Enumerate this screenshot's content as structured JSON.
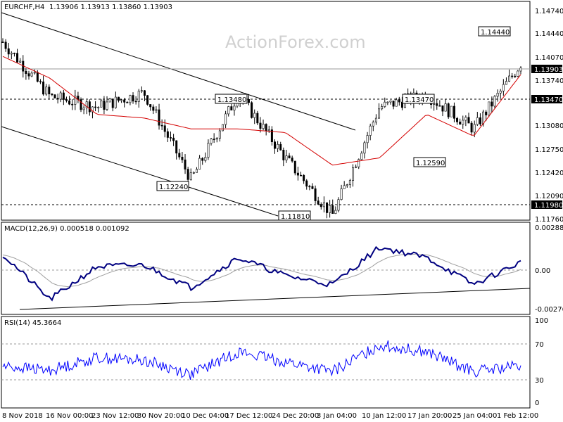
{
  "header": {
    "symbol": "EURCHF,H4",
    "ohlc": "1.13906 1.13913 1.13860 1.13903"
  },
  "watermark": "ActionForex.com",
  "colors": {
    "candle": "#000000",
    "ma": "#d40000",
    "macd": "#000080",
    "signal": "#a0a0a0",
    "rsi": "#0000ff",
    "trend": "#000000"
  },
  "price_axis": {
    "ticks": [
      "1.14740",
      "1.14440",
      "1.14070",
      "1.13740",
      "1.13470",
      "1.13080",
      "1.12750",
      "1.12420",
      "1.12090",
      "1.11980",
      "1.11760"
    ],
    "current": "1.13903",
    "level_label": "1.13470",
    "level_label2": "1.11980"
  },
  "macd_panel": {
    "label": "MACD(12,26,9) 0.000518 0.001092",
    "ticks": [
      "0.002887",
      "0.00",
      "-0.002764"
    ],
    "current": "0.00"
  },
  "rsi_panel": {
    "label": "RSI(14) 45.3664",
    "ticks": [
      "100",
      "70",
      "30",
      "0"
    ]
  },
  "annotations": [
    "1.13480",
    "1.12240",
    "1.11810",
    "1.13470",
    "1.12590",
    "1.14440"
  ],
  "x_axis": [
    "8 Nov 2018",
    "16 Nov 00:00",
    "23 Nov 12:00",
    "30 Nov 20:00",
    "10 Dec 04:00",
    "17 Dec 12:00",
    "24 Dec 20:00",
    "3 Jan 04:00",
    "10 Jan 12:00",
    "17 Jan 20:00",
    "25 Jan 04:00",
    "1 Feb 12:00"
  ],
  "chart_data": {
    "type": "candlestick",
    "title": "EURCHF,H4",
    "categories": [
      "8 Nov 2018",
      "16 Nov 00:00",
      "23 Nov 12:00",
      "30 Nov 20:00",
      "10 Dec 04:00",
      "17 Dec 12:00",
      "24 Dec 20:00",
      "3 Jan 04:00",
      "10 Jan 12:00",
      "17 Jan 20:00",
      "25 Jan 04:00",
      "1 Feb 12:00"
    ],
    "price_close": [
      1.142,
      1.1345,
      1.133,
      1.135,
      1.123,
      1.1348,
      1.126,
      1.1181,
      1.133,
      1.1347,
      1.13,
      1.139
    ],
    "moving_average": [
      1.14,
      1.137,
      1.132,
      1.1315,
      1.13,
      1.13,
      1.1295,
      1.125,
      1.126,
      1.132,
      1.129,
      1.1375
    ],
    "series": [
      {
        "name": "MACD(12,26,9)",
        "values": [
          0.001,
          -0.002,
          0.0002,
          0.0003,
          -0.0012,
          0.0008,
          -0.0004,
          -0.001,
          0.0015,
          0.0008,
          -0.001,
          0.0005
        ]
      },
      {
        "name": "RSI(14)",
        "values": [
          45,
          40,
          55,
          52,
          35,
          62,
          50,
          38,
          70,
          62,
          38,
          45
        ]
      }
    ],
    "key_levels": [
      1.1347,
      1.1198
    ],
    "ylim": [
      1.1176,
      1.1474
    ]
  }
}
